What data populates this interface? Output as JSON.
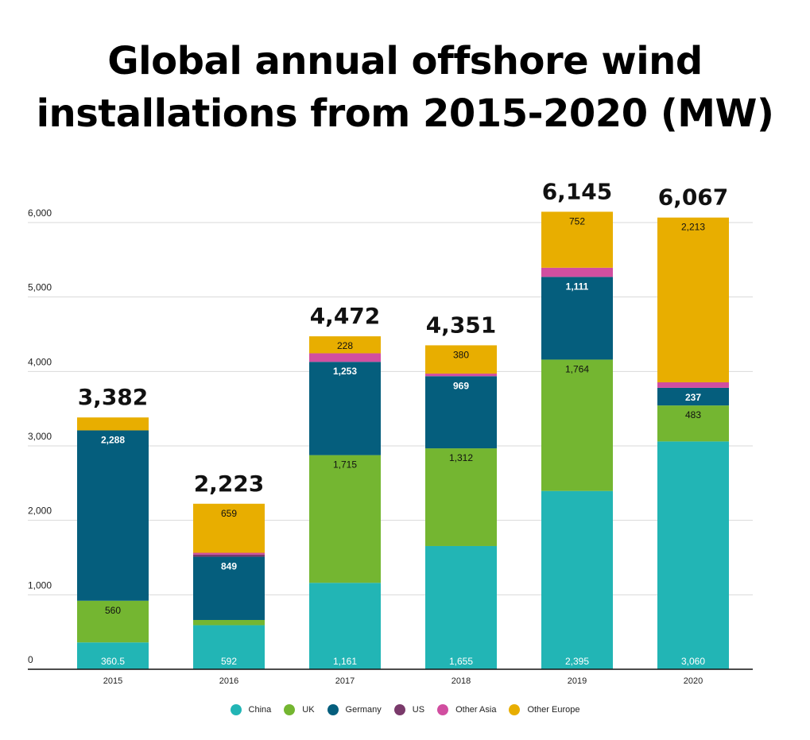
{
  "title_lines": [
    "Global annual offshore wind",
    "installations from 2015-2020 (MW)"
  ],
  "colors": {
    "China": "#22b5b5",
    "UK": "#74b631",
    "Germany": "#055e7d",
    "US": "#7a3a6b",
    "Other Asia": "#d14ea0",
    "Other Europe": "#e8ae00"
  },
  "chart_data": {
    "type": "bar",
    "stacked": true,
    "title": "Global annual offshore wind installations from 2015-2020 (MW)",
    "categories": [
      "2015",
      "2016",
      "2017",
      "2018",
      "2019",
      "2020"
    ],
    "ylim": [
      0,
      6500
    ],
    "yticks": [
      0,
      1000,
      2000,
      3000,
      4000,
      5000,
      6000
    ],
    "ytick_labels": [
      "0",
      "1,000",
      "2,000",
      "3,000",
      "4,000",
      "5,000",
      "6,000"
    ],
    "grid": true,
    "legend_position": "bottom",
    "totals": [
      3382,
      2223,
      4472,
      4351,
      6145,
      6067
    ],
    "total_labels": [
      "3,382",
      "2,223",
      "4,472",
      "4,351",
      "6,145",
      "6,067"
    ],
    "series": [
      {
        "name": "China",
        "values": [
          360.5,
          592,
          1161,
          1655,
          2395,
          3060
        ],
        "labels": [
          "360.5",
          "592",
          "1,161",
          "1,655",
          "2,395",
          "3,060"
        ]
      },
      {
        "name": "UK",
        "values": [
          560,
          70,
          1715,
          1312,
          1764,
          483
        ],
        "labels": [
          "560",
          "",
          "1,715",
          "1,312",
          "1,764",
          "483"
        ]
      },
      {
        "name": "Germany",
        "values": [
          2288,
          849,
          1253,
          969,
          1111,
          237
        ],
        "labels": [
          "2,288",
          "849",
          "1,253",
          "969",
          "1,111",
          "237"
        ]
      },
      {
        "name": "US",
        "values": [
          0,
          30,
          0,
          0,
          0,
          0
        ],
        "labels": [
          "",
          "",
          "",
          "",
          "",
          ""
        ]
      },
      {
        "name": "Other Asia",
        "values": [
          0,
          23,
          115,
          35,
          123,
          74
        ],
        "labels": [
          "",
          "",
          "",
          "",
          "",
          ""
        ]
      },
      {
        "name": "Other Europe",
        "values": [
          173.5,
          659,
          228,
          380,
          752,
          2213
        ],
        "labels": [
          "",
          "659",
          "228",
          "380",
          "752",
          "2,213"
        ]
      }
    ]
  }
}
